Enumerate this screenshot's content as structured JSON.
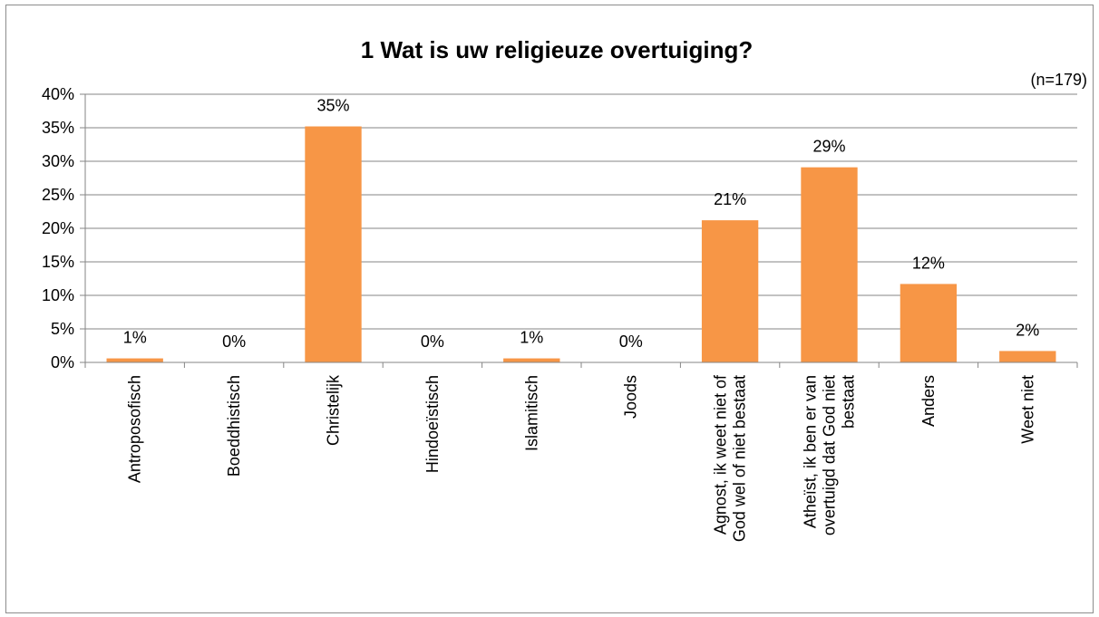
{
  "chart_data": {
    "type": "bar",
    "title": "1 Wat is uw religieuze overtuiging?",
    "subtitle": "(n=179)",
    "categories": [
      [
        "Antroposofisch"
      ],
      [
        "Boeddhistisch"
      ],
      [
        "Christelijk"
      ],
      [
        "Hindoeïstisch"
      ],
      [
        "Islamitisch"
      ],
      [
        "Joods"
      ],
      [
        "Agnost, ik weet niet of",
        "God wel of niet bestaat"
      ],
      [
        "Atheïst, ik ben er van",
        "overtuigd dat God niet",
        "bestaat"
      ],
      [
        "Anders"
      ],
      [
        "Weet niet"
      ]
    ],
    "values": [
      0.6,
      0,
      35.2,
      0,
      0.6,
      0,
      21.2,
      29.1,
      11.7,
      1.7
    ],
    "data_labels": [
      "1%",
      "0%",
      "35%",
      "0%",
      "1%",
      "0%",
      "21%",
      "29%",
      "12%",
      "2%"
    ],
    "y_ticks": [
      "0%",
      "5%",
      "10%",
      "15%",
      "20%",
      "25%",
      "30%",
      "35%",
      "40%"
    ],
    "ylim": [
      0,
      40
    ],
    "ytick_step": 5,
    "grid": true,
    "legend": "none",
    "bar_color": "#f79646",
    "grid_color": "#868686"
  }
}
